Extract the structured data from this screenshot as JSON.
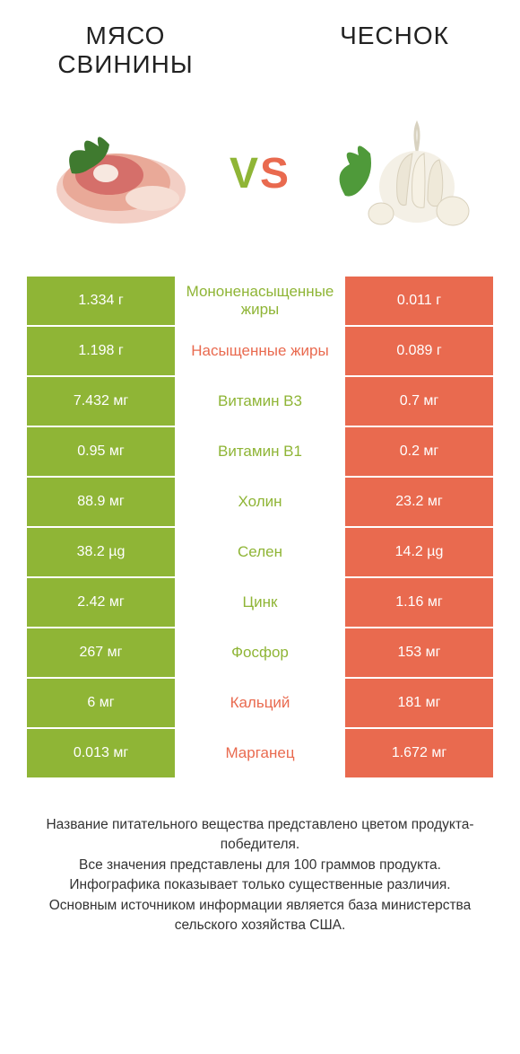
{
  "header": {
    "left_title": "МЯСО СВИНИНЫ",
    "right_title": "ЧЕСНОК",
    "vs_v": "V",
    "vs_s": "S"
  },
  "colors": {
    "green": "#8fb536",
    "orange": "#e96a4f",
    "mid_bg": "#ffffff",
    "label_win_left": "#8fb536",
    "label_win_right": "#e96a4f"
  },
  "rows": [
    {
      "label": "Мононенасыщенные жиры",
      "left": "1.334 г",
      "right": "0.011 г",
      "winner": "left"
    },
    {
      "label": "Насыщенные жиры",
      "left": "1.198 г",
      "right": "0.089 г",
      "winner": "right"
    },
    {
      "label": "Витамин B3",
      "left": "7.432 мг",
      "right": "0.7 мг",
      "winner": "left"
    },
    {
      "label": "Витамин B1",
      "left": "0.95 мг",
      "right": "0.2 мг",
      "winner": "left"
    },
    {
      "label": "Холин",
      "left": "88.9 мг",
      "right": "23.2 мг",
      "winner": "left"
    },
    {
      "label": "Селен",
      "left": "38.2 µg",
      "right": "14.2 µg",
      "winner": "left"
    },
    {
      "label": "Цинк",
      "left": "2.42 мг",
      "right": "1.16 мг",
      "winner": "left"
    },
    {
      "label": "Фосфор",
      "left": "267 мг",
      "right": "153 мг",
      "winner": "left"
    },
    {
      "label": "Кальций",
      "left": "6 мг",
      "right": "181 мг",
      "winner": "right"
    },
    {
      "label": "Марганец",
      "left": "0.013 мг",
      "right": "1.672 мг",
      "winner": "right"
    }
  ],
  "footer": {
    "line1": "Название питательного вещества представлено цветом продукта-победителя.",
    "line2": "Все значения представлены для 100 граммов продукта.",
    "line3": "Инфографика показывает только существенные различия.",
    "line4": "Основным источником информации является база министерства сельского хозяйства США."
  }
}
